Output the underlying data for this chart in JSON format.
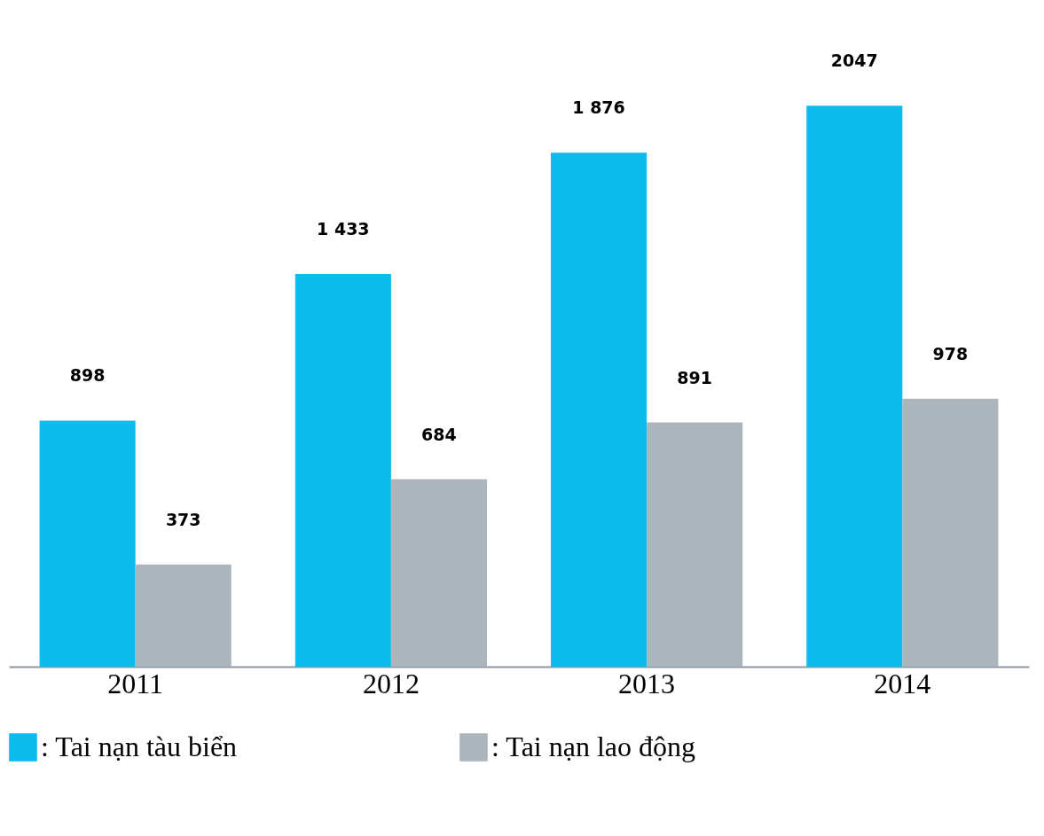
{
  "chart_data": {
    "type": "bar",
    "categories": [
      "2011",
      "2012",
      "2013",
      "2014"
    ],
    "series": [
      {
        "name": ": Tai nạn tàu biển",
        "color": "#0ebbee",
        "values": [
          898,
          1433,
          1876,
          2047
        ],
        "value_labels": [
          "898",
          "1 433",
          "1 876",
          "2047"
        ]
      },
      {
        "name": ": Tai nạn lao động",
        "color": "#adb5bc",
        "values": [
          373,
          684,
          891,
          978
        ],
        "value_labels": [
          "373",
          "684",
          "891",
          "978"
        ]
      }
    ],
    "legend": "bottom",
    "grid": false
  }
}
